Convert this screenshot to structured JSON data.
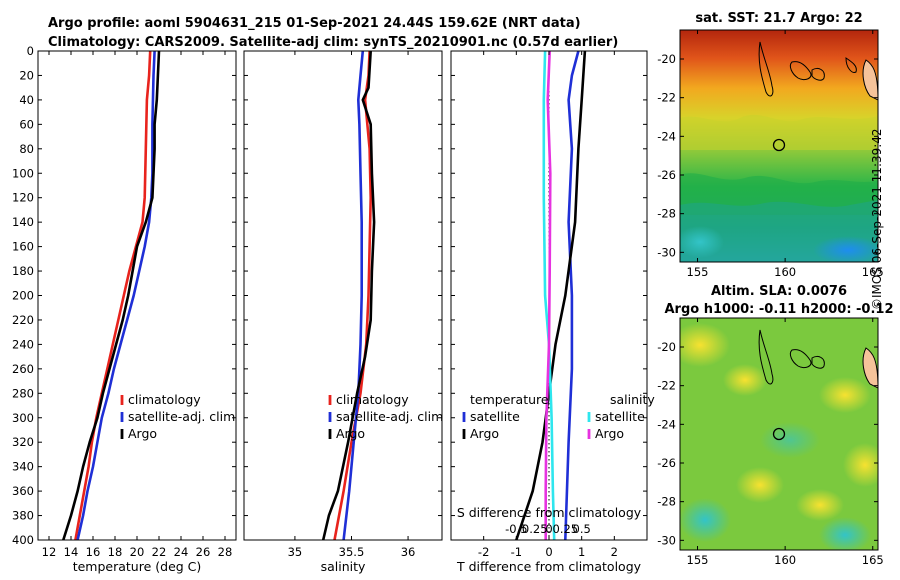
{
  "titles": {
    "line1": "Argo profile: aoml 5904631_215 01-Sep-2021 24.44S 159.62E (NRT data)",
    "line2": "Climatology: CARS2009. Satellite-adj clim: synTS_20210901.nc (0.57d earlier)"
  },
  "stamp": "©IMOS 06-Sep-2021 11:39:42",
  "colors": {
    "climatology": "#e8231d",
    "satellite": "#1f2fd6",
    "argo": "#000000",
    "s_satellite": "#2ee6ee",
    "s_argo": "#e632e0"
  },
  "chart_data": [
    {
      "type": "line",
      "id": "temperature",
      "xlabel": "temperature (deg C)",
      "xlim": [
        11,
        29
      ],
      "xticks": [
        12,
        14,
        16,
        18,
        20,
        22,
        24,
        26,
        28
      ],
      "ylim": [
        400,
        0
      ],
      "yticks": [
        0,
        20,
        40,
        60,
        80,
        100,
        120,
        140,
        160,
        180,
        200,
        220,
        240,
        260,
        280,
        300,
        320,
        340,
        360,
        380,
        400
      ],
      "legend": [
        "climatology",
        "satellite-adj. clim",
        "Argo"
      ],
      "series": [
        {
          "name": "climatology",
          "color": "#e8231d",
          "points": [
            [
              21.2,
              0
            ],
            [
              21.1,
              20
            ],
            [
              20.9,
              40
            ],
            [
              20.8,
              80
            ],
            [
              20.7,
              120
            ],
            [
              20.5,
              140
            ],
            [
              19.9,
              160
            ],
            [
              19.3,
              180
            ],
            [
              18.8,
              200
            ],
            [
              18.3,
              220
            ],
            [
              17.8,
              240
            ],
            [
              17.3,
              260
            ],
            [
              16.8,
              280
            ],
            [
              16.3,
              300
            ],
            [
              15.9,
              320
            ],
            [
              15.6,
              340
            ],
            [
              15.2,
              360
            ],
            [
              14.8,
              380
            ],
            [
              14.4,
              400
            ]
          ]
        },
        {
          "name": "satellite-adj. clim",
          "color": "#1f2fd6",
          "points": [
            [
              21.6,
              0
            ],
            [
              21.5,
              20
            ],
            [
              21.4,
              60
            ],
            [
              21.4,
              100
            ],
            [
              21.3,
              120
            ],
            [
              21.1,
              140
            ],
            [
              20.7,
              160
            ],
            [
              20.2,
              180
            ],
            [
              19.7,
              200
            ],
            [
              19.1,
              220
            ],
            [
              18.5,
              240
            ],
            [
              17.9,
              260
            ],
            [
              17.4,
              280
            ],
            [
              16.8,
              300
            ],
            [
              16.4,
              320
            ],
            [
              16,
              340
            ],
            [
              15.5,
              360
            ],
            [
              15.1,
              380
            ],
            [
              14.6,
              400
            ]
          ]
        },
        {
          "name": "Argo",
          "color": "#000000",
          "points": [
            [
              22,
              0
            ],
            [
              21.9,
              20
            ],
            [
              21.8,
              40
            ],
            [
              21.6,
              60
            ],
            [
              21.6,
              80
            ],
            [
              21.5,
              100
            ],
            [
              21.4,
              120
            ],
            [
              20.8,
              140
            ],
            [
              20,
              160
            ],
            [
              19.6,
              180
            ],
            [
              19.2,
              200
            ],
            [
              18.7,
              220
            ],
            [
              18.1,
              240
            ],
            [
              17.5,
              260
            ],
            [
              16.9,
              280
            ],
            [
              16.4,
              300
            ],
            [
              15.7,
              320
            ],
            [
              15.1,
              340
            ],
            [
              14.6,
              360
            ],
            [
              14,
              380
            ],
            [
              13.3,
              400
            ]
          ]
        }
      ]
    },
    {
      "type": "line",
      "id": "salinity",
      "xlabel": "salinity",
      "xlim": [
        34.55,
        36.3
      ],
      "xticks": [
        35,
        35.5,
        36
      ],
      "ylim": [
        400,
        0
      ],
      "legend": [
        "climatology",
        "satellite-adj. clim",
        "Argo"
      ],
      "series": [
        {
          "name": "climatology",
          "color": "#e8231d",
          "points": [
            [
              35.66,
              0
            ],
            [
              35.65,
              20
            ],
            [
              35.62,
              40
            ],
            [
              35.66,
              80
            ],
            [
              35.67,
              120
            ],
            [
              35.66,
              160
            ],
            [
              35.65,
              200
            ],
            [
              35.63,
              240
            ],
            [
              35.58,
              280
            ],
            [
              35.5,
              320
            ],
            [
              35.43,
              360
            ],
            [
              35.35,
              400
            ]
          ]
        },
        {
          "name": "satellite-adj. clim",
          "color": "#1f2fd6",
          "points": [
            [
              35.6,
              0
            ],
            [
              35.58,
              20
            ],
            [
              35.56,
              40
            ],
            [
              35.57,
              60
            ],
            [
              35.58,
              100
            ],
            [
              35.59,
              140
            ],
            [
              35.59,
              200
            ],
            [
              35.58,
              240
            ],
            [
              35.56,
              280
            ],
            [
              35.52,
              320
            ],
            [
              35.48,
              360
            ],
            [
              35.43,
              400
            ]
          ]
        },
        {
          "name": "Argo",
          "color": "#000000",
          "points": [
            [
              35.67,
              0
            ],
            [
              35.65,
              30
            ],
            [
              35.6,
              40
            ],
            [
              35.67,
              60
            ],
            [
              35.68,
              100
            ],
            [
              35.7,
              140
            ],
            [
              35.68,
              180
            ],
            [
              35.67,
              220
            ],
            [
              35.62,
              250
            ],
            [
              35.55,
              280
            ],
            [
              35.47,
              320
            ],
            [
              35.38,
              360
            ],
            [
              35.3,
              380
            ],
            [
              35.25,
              400
            ]
          ]
        }
      ]
    },
    {
      "type": "line",
      "id": "differences",
      "xlabel": "T difference from climatology",
      "xlabel_top": "S difference from climatology",
      "xlim": [
        -3,
        3
      ],
      "xticks": [
        -2,
        -1,
        0,
        1,
        2
      ],
      "xticklabels": [
        "-2",
        "-1",
        "0",
        "1",
        "2"
      ],
      "sticks": [
        -0.5,
        -0.25,
        0,
        0.25,
        0.5
      ],
      "sticklabels": [
        "-0.5",
        "-0.25",
        "0",
        "0.25",
        "0.5"
      ],
      "s_scale": 2,
      "ylim": [
        400,
        0
      ],
      "legend_temperature": {
        "title": "temperature",
        "items": [
          "satellite",
          "Argo"
        ]
      },
      "legend_salinity": {
        "title": "salinity",
        "items": [
          "satellite",
          "Argo"
        ]
      },
      "series": [
        {
          "name": "T satellite",
          "color": "#1f2fd6",
          "points": [
            [
              0.9,
              0
            ],
            [
              0.7,
              20
            ],
            [
              0.6,
              40
            ],
            [
              0.7,
              80
            ],
            [
              0.6,
              140
            ],
            [
              0.7,
              200
            ],
            [
              0.7,
              260
            ],
            [
              0.6,
              320
            ],
            [
              0.5,
              400
            ]
          ]
        },
        {
          "name": "T Argo",
          "color": "#000000",
          "points": [
            [
              1.1,
              0
            ],
            [
              1.0,
              40
            ],
            [
              0.9,
              80
            ],
            [
              0.8,
              140
            ],
            [
              0.5,
              200
            ],
            [
              0.2,
              240
            ],
            [
              0,
              280
            ],
            [
              -0.2,
              320
            ],
            [
              -0.5,
              360
            ],
            [
              -1.0,
              400
            ]
          ]
        },
        {
          "name": "S satellite",
          "color": "#2ee6ee",
          "points": [
            [
              -0.06,
              0
            ],
            [
              -0.08,
              40
            ],
            [
              -0.08,
              120
            ],
            [
              -0.06,
              200
            ],
            [
              0.0,
              240
            ],
            [
              0.04,
              300
            ],
            [
              0.06,
              360
            ],
            [
              0.08,
              400
            ]
          ]
        },
        {
          "name": "S Argo",
          "color": "#e632e0",
          "points": [
            [
              0.01,
              0
            ],
            [
              -0.02,
              40
            ],
            [
              0.02,
              100
            ],
            [
              0.01,
              180
            ],
            [
              0.0,
              240
            ],
            [
              -0.04,
              300
            ],
            [
              -0.05,
              360
            ],
            [
              -0.05,
              400
            ]
          ]
        }
      ]
    },
    {
      "type": "heatmap",
      "id": "sst_map",
      "title": "sat. SST: 21.7 Argo: 22",
      "xlim": [
        154,
        165.3
      ],
      "ylim": [
        -30.5,
        -18.5
      ],
      "xticks": [
        155,
        160,
        165
      ],
      "yticks": [
        -20,
        -22,
        -24,
        -26,
        -28,
        -30
      ],
      "argo_position": [
        159.62,
        -24.44
      ]
    },
    {
      "type": "heatmap",
      "id": "sla_map",
      "title": "Altim. SLA: 0.0076",
      "subtitle": "Argo h1000: -0.11 h2000: -0.12",
      "xlim": [
        154,
        165.3
      ],
      "ylim": [
        -30.5,
        -18.5
      ],
      "xticks": [
        155,
        160,
        165
      ],
      "yticks": [
        -20,
        -22,
        -24,
        -26,
        -28,
        -30
      ],
      "argo_position": [
        159.62,
        -24.44
      ]
    }
  ]
}
